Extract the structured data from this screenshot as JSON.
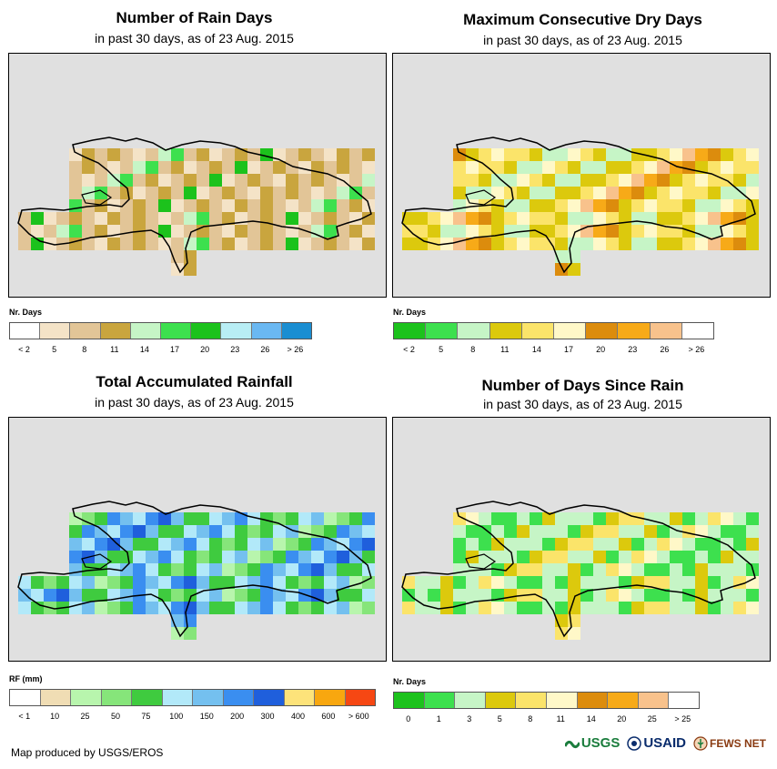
{
  "panels": [
    {
      "title": "Number of Rain Days",
      "subtitle": "in past 30 days, as of 23 Aug. 2015",
      "legend": {
        "title": "Nr. Days",
        "colors": [
          "#ffffff",
          "#f4e3c7",
          "#e2c597",
          "#c9a53e",
          "#c6f5c6",
          "#3de04e",
          "#1cc21c",
          "#b8eef5",
          "#6ab8f2",
          "#1a8ed2"
        ],
        "labels": [
          "< 2",
          "5",
          "8",
          "11",
          "14",
          "17",
          "20",
          "23",
          "26",
          "> 26"
        ]
      }
    },
    {
      "title": "Maximum Consecutive Dry Days",
      "subtitle": "in past 30 days, as of 23 Aug. 2015",
      "legend": {
        "title": "Nr. Days",
        "colors": [
          "#1cc21c",
          "#3de04e",
          "#c6f5c6",
          "#dcc90d",
          "#fbe46a",
          "#fff8c8",
          "#dc8c0d",
          "#f7aa18",
          "#f8c28c",
          "#ffffff"
        ],
        "labels": [
          "< 2",
          "5",
          "8",
          "11",
          "14",
          "17",
          "20",
          "23",
          "26",
          "> 26"
        ]
      }
    },
    {
      "title": "Total Accumulated Rainfall",
      "subtitle": "in past 30 days, as of 23 Aug. 2015",
      "legend": {
        "title": "RF (mm)",
        "colors": [
          "#ffffff",
          "#f0ddb4",
          "#b8f5ad",
          "#86e57a",
          "#3fcb3f",
          "#b2e9f9",
          "#74c0ef",
          "#3a8ef0",
          "#1f5fdc",
          "#fde37a",
          "#f8a70f",
          "#f64713"
        ],
        "labels": [
          "< 1",
          "10",
          "25",
          "50",
          "75",
          "100",
          "150",
          "200",
          "300",
          "400",
          "600",
          "> 600"
        ]
      }
    },
    {
      "title": "Number of Days Since Rain",
      "subtitle": "in past 30 days, as of 23 Aug. 2015",
      "legend": {
        "title": "Nr. Days",
        "colors": [
          "#1cc21c",
          "#3de04e",
          "#c6f5c6",
          "#dcc90d",
          "#fbe46a",
          "#fff8c8",
          "#dc8c0d",
          "#f7aa18",
          "#f8c28c",
          "#ffffff"
        ],
        "labels": [
          "0",
          "1",
          "3",
          "5",
          "8",
          "11",
          "14",
          "20",
          "25",
          "> 25"
        ]
      }
    }
  ],
  "footer": {
    "credit": "Map produced by USGS/EROS"
  },
  "logos": {
    "usgs": "USGS",
    "usaid": "USAID",
    "fews": "FEWS NET"
  },
  "colors": {
    "map_background": "#e0e0e0"
  }
}
